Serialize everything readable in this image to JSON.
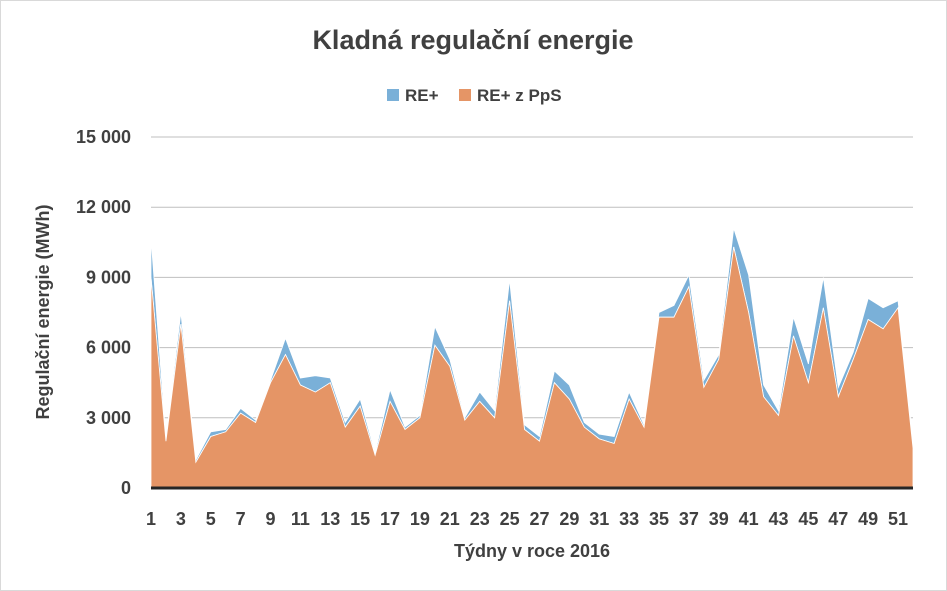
{
  "chart_data": {
    "type": "area",
    "stacked": true,
    "title": "Kladná regulační energie",
    "xlabel": "Týdny v roce 2016",
    "ylabel": "Regulační energie (MWh)",
    "ylim": [
      0,
      15000
    ],
    "yticks": [
      0,
      3000,
      6000,
      9000,
      12000,
      15000
    ],
    "ytick_labels": [
      "0",
      "3 000",
      "6 000",
      "9 000",
      "12 000",
      "15 000"
    ],
    "x": [
      1,
      2,
      3,
      4,
      5,
      6,
      7,
      8,
      9,
      10,
      11,
      12,
      13,
      14,
      15,
      16,
      17,
      18,
      19,
      20,
      21,
      22,
      23,
      24,
      25,
      26,
      27,
      28,
      29,
      30,
      31,
      32,
      33,
      34,
      35,
      36,
      37,
      38,
      39,
      40,
      41,
      42,
      43,
      44,
      45,
      46,
      47,
      48,
      49,
      50,
      51,
      52
    ],
    "xtick_labels": [
      "1",
      "3",
      "5",
      "7",
      "9",
      "11",
      "13",
      "15",
      "17",
      "19",
      "21",
      "23",
      "25",
      "27",
      "29",
      "31",
      "33",
      "35",
      "37",
      "39",
      "41",
      "43",
      "45",
      "47",
      "49",
      "51"
    ],
    "legend_position": "top",
    "grid": true,
    "colors": {
      "RE+ z PpS": "#e59566",
      "RE+": "#7ab0d8"
    },
    "series": [
      {
        "name": "RE+ z PpS",
        "values": [
          9000,
          2000,
          7000,
          1100,
          2200,
          2400,
          3200,
          2800,
          4500,
          5700,
          4400,
          4100,
          4500,
          2600,
          3500,
          1400,
          3700,
          2500,
          3000,
          6100,
          5200,
          2900,
          3700,
          3000,
          8000,
          2500,
          2000,
          4500,
          3800,
          2600,
          2100,
          1900,
          3800,
          2600,
          7300,
          7300,
          8600,
          4300,
          5500,
          10300,
          7500,
          3900,
          3100,
          6500,
          4500,
          7700,
          3900,
          5500,
          7200,
          6800,
          7700,
          1700
        ]
      },
      {
        "name": "RE+",
        "values": [
          1700,
          100,
          500,
          100,
          200,
          100,
          200,
          100,
          100,
          700,
          300,
          700,
          200,
          200,
          300,
          100,
          500,
          100,
          100,
          800,
          300,
          100,
          400,
          300,
          900,
          200,
          200,
          500,
          600,
          200,
          200,
          300,
          300,
          100,
          200,
          500,
          500,
          300,
          200,
          800,
          1600,
          500,
          200,
          800,
          800,
          1300,
          400,
          300,
          900,
          900,
          300,
          300
        ]
      }
    ]
  }
}
